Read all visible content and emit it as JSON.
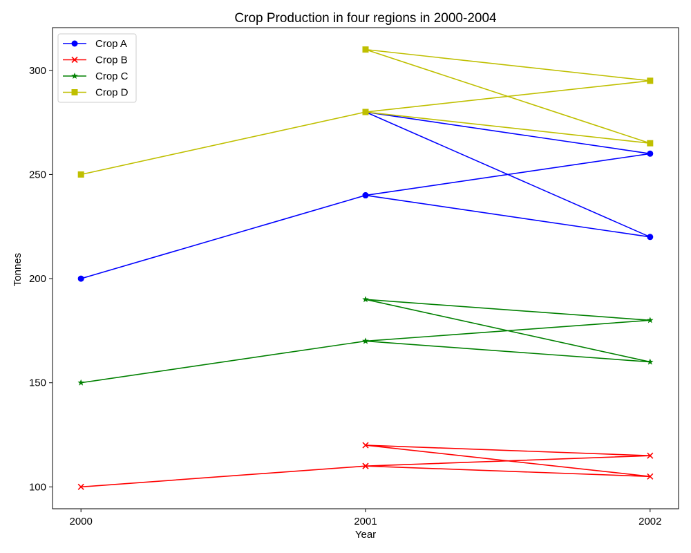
{
  "chart_data": {
    "type": "line",
    "title": "Crop Production in four regions in 2000-2004",
    "xlabel": "Year",
    "ylabel": "Tonnes",
    "x_ticks": [
      "2000",
      "2001",
      "2002"
    ],
    "y_ticks": [
      "100",
      "150",
      "200",
      "250",
      "300"
    ],
    "xlim": [
      1999.9,
      2002.1
    ],
    "ylim": [
      89.5,
      320.5
    ],
    "grid": false,
    "legend_position": "top-left",
    "x": [
      2000,
      2001,
      2002,
      2001,
      2002,
      2001
    ],
    "series": [
      {
        "name": "Crop A",
        "color": "#0000ff",
        "marker": "circle",
        "values": [
          200,
          240,
          220,
          280,
          260,
          240
        ]
      },
      {
        "name": "Crop B",
        "color": "#ff0000",
        "marker": "x",
        "values": [
          100,
          110,
          105,
          120,
          115,
          110
        ]
      },
      {
        "name": "Crop C",
        "color": "#008000",
        "marker": "star",
        "values": [
          150,
          170,
          160,
          190,
          180,
          170
        ]
      },
      {
        "name": "Crop D",
        "color": "#bfbf00",
        "marker": "square",
        "values": [
          250,
          280,
          265,
          310,
          295,
          280
        ]
      }
    ]
  }
}
